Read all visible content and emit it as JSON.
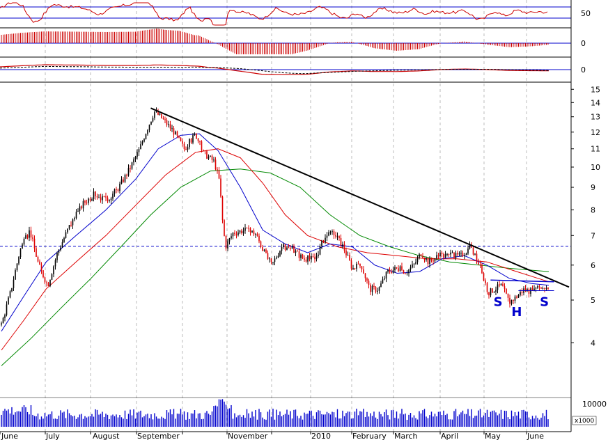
{
  "chart_data": {
    "type": "candlestick",
    "scale": "log",
    "ylim": [
      3.3,
      15.5
    ],
    "y_ticks": [
      4,
      5,
      6,
      7,
      8,
      9,
      10,
      11,
      12,
      13,
      14,
      15
    ],
    "x_labels": [
      "June",
      "July",
      "August",
      "September",
      "November",
      "2010",
      "February",
      "March",
      "April",
      "May",
      "June"
    ],
    "colors": {
      "up": "#000000",
      "down": "#dd0000",
      "ma_short": "#0000cc",
      "ma_mid": "#dd0000",
      "ma_long": "#008800",
      "trend": "#000000",
      "neckline": "#0000cc",
      "volume": "#0000cc"
    },
    "price_path": [
      {
        "d": 0,
        "p": 4.4
      },
      {
        "d": 12,
        "p": 5.2
      },
      {
        "d": 25,
        "p": 6.5
      },
      {
        "d": 38,
        "p": 7.2
      },
      {
        "d": 50,
        "p": 6.0
      },
      {
        "d": 62,
        "p": 5.4
      },
      {
        "d": 75,
        "p": 6.4
      },
      {
        "d": 90,
        "p": 7.3
      },
      {
        "d": 110,
        "p": 8.3
      },
      {
        "d": 125,
        "p": 8.7
      },
      {
        "d": 140,
        "p": 8.4
      },
      {
        "d": 155,
        "p": 8.9
      },
      {
        "d": 170,
        "p": 9.8
      },
      {
        "d": 185,
        "p": 11.0
      },
      {
        "d": 195,
        "p": 12.2
      },
      {
        "d": 205,
        "p": 13.4
      },
      {
        "d": 215,
        "p": 12.9
      },
      {
        "d": 230,
        "p": 12.1
      },
      {
        "d": 245,
        "p": 11.0
      },
      {
        "d": 260,
        "p": 11.9
      },
      {
        "d": 270,
        "p": 10.8
      },
      {
        "d": 285,
        "p": 10.3
      },
      {
        "d": 292,
        "p": 9.3
      },
      {
        "d": 296,
        "p": 7.6
      },
      {
        "d": 300,
        "p": 6.6
      },
      {
        "d": 310,
        "p": 7.1
      },
      {
        "d": 325,
        "p": 7.2
      },
      {
        "d": 340,
        "p": 7.1
      },
      {
        "d": 352,
        "p": 6.4
      },
      {
        "d": 362,
        "p": 6.0
      },
      {
        "d": 375,
        "p": 6.6
      },
      {
        "d": 390,
        "p": 6.5
      },
      {
        "d": 405,
        "p": 6.2
      },
      {
        "d": 420,
        "p": 6.2
      },
      {
        "d": 432,
        "p": 6.9
      },
      {
        "d": 445,
        "p": 7.1
      },
      {
        "d": 458,
        "p": 6.6
      },
      {
        "d": 470,
        "p": 5.9
      },
      {
        "d": 482,
        "p": 6.0
      },
      {
        "d": 493,
        "p": 5.3
      },
      {
        "d": 505,
        "p": 5.3
      },
      {
        "d": 517,
        "p": 5.8
      },
      {
        "d": 530,
        "p": 5.9
      },
      {
        "d": 542,
        "p": 5.8
      },
      {
        "d": 552,
        "p": 6.0
      },
      {
        "d": 562,
        "p": 6.4
      },
      {
        "d": 572,
        "p": 6.1
      },
      {
        "d": 585,
        "p": 6.3
      },
      {
        "d": 600,
        "p": 6.3
      },
      {
        "d": 615,
        "p": 6.3
      },
      {
        "d": 628,
        "p": 6.6
      },
      {
        "d": 640,
        "p": 6.0
      },
      {
        "d": 652,
        "p": 5.2
      },
      {
        "d": 660,
        "p": 5.3
      },
      {
        "d": 670,
        "p": 5.4
      },
      {
        "d": 680,
        "p": 4.95
      },
      {
        "d": 690,
        "p": 5.1
      },
      {
        "d": 700,
        "p": 5.3
      },
      {
        "d": 712,
        "p": 5.2
      },
      {
        "d": 722,
        "p": 5.35
      },
      {
        "d": 733,
        "p": 5.35
      }
    ],
    "ma_short": [
      {
        "d": 0,
        "p": 4.25
      },
      {
        "d": 30,
        "p": 5.1
      },
      {
        "d": 60,
        "p": 6.1
      },
      {
        "d": 100,
        "p": 7.0
      },
      {
        "d": 140,
        "p": 8.0
      },
      {
        "d": 180,
        "p": 9.4
      },
      {
        "d": 210,
        "p": 11.0
      },
      {
        "d": 240,
        "p": 11.8
      },
      {
        "d": 265,
        "p": 11.9
      },
      {
        "d": 290,
        "p": 10.9
      },
      {
        "d": 320,
        "p": 9.0
      },
      {
        "d": 350,
        "p": 7.2
      },
      {
        "d": 380,
        "p": 6.7
      },
      {
        "d": 410,
        "p": 6.4
      },
      {
        "d": 440,
        "p": 6.7
      },
      {
        "d": 470,
        "p": 6.6
      },
      {
        "d": 500,
        "p": 6.0
      },
      {
        "d": 530,
        "p": 5.75
      },
      {
        "d": 560,
        "p": 5.8
      },
      {
        "d": 590,
        "p": 6.2
      },
      {
        "d": 620,
        "p": 6.3
      },
      {
        "d": 650,
        "p": 6.0
      },
      {
        "d": 680,
        "p": 5.6
      },
      {
        "d": 710,
        "p": 5.45
      },
      {
        "d": 733,
        "p": 5.4
      }
    ],
    "ma_mid": [
      {
        "d": 0,
        "p": 3.85
      },
      {
        "d": 30,
        "p": 4.5
      },
      {
        "d": 60,
        "p": 5.3
      },
      {
        "d": 100,
        "p": 6.1
      },
      {
        "d": 140,
        "p": 7.0
      },
      {
        "d": 180,
        "p": 8.2
      },
      {
        "d": 220,
        "p": 9.6
      },
      {
        "d": 260,
        "p": 10.8
      },
      {
        "d": 290,
        "p": 11.0
      },
      {
        "d": 320,
        "p": 10.5
      },
      {
        "d": 350,
        "p": 9.2
      },
      {
        "d": 380,
        "p": 7.8
      },
      {
        "d": 410,
        "p": 7.0
      },
      {
        "d": 450,
        "p": 6.6
      },
      {
        "d": 490,
        "p": 6.4
      },
      {
        "d": 530,
        "p": 6.3
      },
      {
        "d": 570,
        "p": 6.2
      },
      {
        "d": 610,
        "p": 6.2
      },
      {
        "d": 650,
        "p": 6.1
      },
      {
        "d": 690,
        "p": 5.8
      },
      {
        "d": 733,
        "p": 5.5
      }
    ],
    "ma_long": [
      {
        "d": 0,
        "p": 3.55
      },
      {
        "d": 40,
        "p": 4.1
      },
      {
        "d": 80,
        "p": 4.8
      },
      {
        "d": 120,
        "p": 5.6
      },
      {
        "d": 160,
        "p": 6.6
      },
      {
        "d": 200,
        "p": 7.8
      },
      {
        "d": 240,
        "p": 9.0
      },
      {
        "d": 280,
        "p": 9.8
      },
      {
        "d": 320,
        "p": 9.9
      },
      {
        "d": 360,
        "p": 9.7
      },
      {
        "d": 400,
        "p": 9.0
      },
      {
        "d": 440,
        "p": 7.8
      },
      {
        "d": 480,
        "p": 7.0
      },
      {
        "d": 520,
        "p": 6.6
      },
      {
        "d": 560,
        "p": 6.3
      },
      {
        "d": 600,
        "p": 6.1
      },
      {
        "d": 640,
        "p": 6.0
      },
      {
        "d": 680,
        "p": 5.9
      },
      {
        "d": 733,
        "p": 5.8
      }
    ],
    "trendline": [
      {
        "d": 200,
        "p": 13.6
      },
      {
        "d": 760,
        "p": 5.35
      }
    ],
    "resistance_level": 6.62,
    "neckline": [
      {
        "d": 655,
        "p": 5.55
      },
      {
        "d": 740,
        "p": 5.5
      }
    ],
    "shoulders_level": 5.25,
    "pattern_labels": [
      {
        "text": "S",
        "d": 665,
        "p": 4.85
      },
      {
        "text": "H",
        "d": 690,
        "p": 4.6
      },
      {
        "text": "S",
        "d": 727,
        "p": 4.85
      }
    ],
    "indicators": [
      {
        "type": "oscillator",
        "ticks": [
          "50"
        ],
        "levels": [
          50
        ]
      },
      {
        "type": "histogram",
        "ticks": [
          "0"
        ]
      },
      {
        "type": "macd",
        "ticks": [
          "0"
        ]
      }
    ],
    "volume": {
      "tick": "10000",
      "unit": "x1000"
    }
  }
}
